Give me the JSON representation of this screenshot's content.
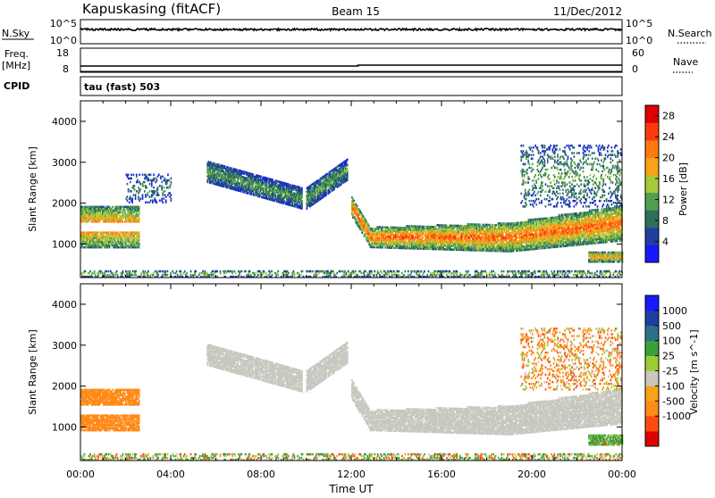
{
  "header": {
    "station": "Kapuskasing (fitACF)",
    "beam": "Beam 15",
    "date": "11/Dec/2012"
  },
  "top_panels": {
    "nsky_label": "N.Sky",
    "nsky_ticks": [
      "10^5",
      "10^0"
    ],
    "nsky_right_ticks": [
      "10^5",
      "10^0"
    ],
    "nsearch_label": "N.Search",
    "freq_label": "Freq.",
    "freq_unit": "[MHz]",
    "freq_ticks": [
      "18",
      "8"
    ],
    "nave_ticks": [
      "60",
      "0"
    ],
    "nave_label": "Nave",
    "cpid_label": "CPID",
    "cpid_text": "tau (fast) 503"
  },
  "colors": {
    "power": [
      "#1818ff",
      "#1f3fa0",
      "#2e6f5c",
      "#4fa04f",
      "#a6c93a",
      "#f7a318",
      "#ff7a10",
      "#ff3a0a",
      "#e00000"
    ],
    "velocity": [
      "#e00000",
      "#ff4a10",
      "#ff8a18",
      "#f7a318",
      "#c8c8c0",
      "#9acd32",
      "#3aa03a",
      "#2e6f8c",
      "#1f3fa0",
      "#1818ff"
    ],
    "ground_scatter": "#c8c8c0"
  },
  "chart_data": [
    {
      "type": "heatmap",
      "title": "Power",
      "xlabel": "",
      "ylabel": "Slant Range [km]",
      "x_ticks": [
        "00:00",
        "04:00",
        "08:00",
        "12:00",
        "16:00",
        "20:00",
        "00:00"
      ],
      "xlim_hours": [
        0,
        24
      ],
      "ylim_km": [
        180,
        4500
      ],
      "y_ticks": [
        1000,
        2000,
        3000,
        4000
      ],
      "colorbar": {
        "label": "Power [dB]",
        "ticks": [
          4,
          8,
          12,
          16,
          20,
          24,
          28
        ],
        "range": [
          0,
          30
        ]
      },
      "regions": [
        {
          "name": "morning-dual-band",
          "t0": 0.0,
          "t1": 2.6,
          "r0": 900,
          "r1": 1900,
          "value": 16
        },
        {
          "name": "scattered-patches",
          "t0": 2.0,
          "t1": 4.0,
          "r0": 2000,
          "r1": 2700,
          "value": 6
        },
        {
          "name": "arc-descending",
          "t0": 5.6,
          "t1": 9.8,
          "r0": 2000,
          "r1": 2800,
          "value": 8
        },
        {
          "name": "arc-rising",
          "t0": 10.0,
          "t1": 11.8,
          "r0": 2000,
          "r1": 2900,
          "value": 8
        },
        {
          "name": "evening-band",
          "t0": 12.0,
          "t1": 24.0,
          "r0": 800,
          "r1": 1700,
          "value": 16
        },
        {
          "name": "late-high-range",
          "t0": 19.5,
          "t1": 24.0,
          "r0": 1900,
          "r1": 3400,
          "value": 8
        },
        {
          "name": "near-range-echoes",
          "t0": 0.0,
          "t1": 24.0,
          "r0": 180,
          "r1": 330,
          "value": 10
        },
        {
          "name": "late-low-band",
          "t0": 22.5,
          "t1": 24.0,
          "r0": 550,
          "r1": 800,
          "value": 14
        }
      ]
    },
    {
      "type": "heatmap",
      "title": "Velocity",
      "xlabel": "Time UT",
      "ylabel": "Slant Range [km]",
      "x_ticks": [
        "00:00",
        "04:00",
        "08:00",
        "12:00",
        "16:00",
        "20:00",
        "00:00"
      ],
      "xlim_hours": [
        0,
        24
      ],
      "ylim_km": [
        180,
        4500
      ],
      "y_ticks": [
        1000,
        2000,
        3000,
        4000
      ],
      "colorbar": {
        "label": "Velocity [m s^-1]",
        "ticks": [
          "1000",
          "500",
          "100",
          "25",
          "-25",
          "-100",
          "-500",
          "-1000"
        ]
      },
      "regions": [
        {
          "name": "morning-dual-band",
          "t0": 0.0,
          "t1": 2.6,
          "r0": 900,
          "r1": 1900,
          "value": -300
        },
        {
          "name": "arc-descending",
          "t0": 5.6,
          "t1": 9.8,
          "r0": 2000,
          "r1": 2800,
          "value": 0
        },
        {
          "name": "arc-rising",
          "t0": 10.0,
          "t1": 11.8,
          "r0": 2000,
          "r1": 2900,
          "value": 0
        },
        {
          "name": "evening-band",
          "t0": 12.0,
          "t1": 24.0,
          "r0": 800,
          "r1": 1700,
          "value": 0
        },
        {
          "name": "late-high-range",
          "t0": 19.5,
          "t1": 24.0,
          "r0": 1900,
          "r1": 3400,
          "value": -100
        },
        {
          "name": "near-range-echoes",
          "t0": 0.0,
          "t1": 24.0,
          "r0": 180,
          "r1": 330,
          "value": 50
        },
        {
          "name": "late-low-band",
          "t0": 22.5,
          "t1": 24.0,
          "r0": 550,
          "r1": 800,
          "value": 150
        }
      ]
    }
  ]
}
